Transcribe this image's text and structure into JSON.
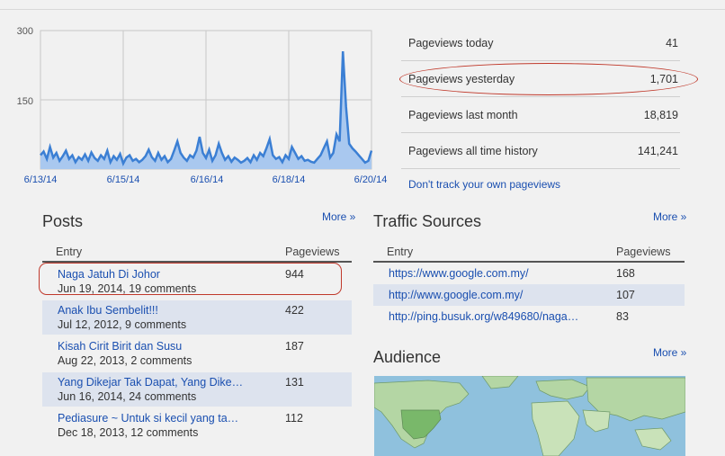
{
  "chart_data": {
    "type": "area",
    "y_ticks": [
      "300",
      "150"
    ],
    "x_labels": [
      "6/13/14",
      "6/15/14",
      "6/16/14",
      "6/18/14",
      "6/20/14"
    ],
    "ylim": [
      0,
      300
    ],
    "grid": true,
    "color": "#3b7fd4",
    "fill": "#a9c8ef",
    "values": [
      30,
      38,
      22,
      48,
      25,
      35,
      18,
      28,
      40,
      22,
      30,
      15,
      26,
      20,
      32,
      18,
      36,
      24,
      18,
      30,
      22,
      40,
      15,
      28,
      20,
      33,
      12,
      25,
      30,
      18,
      22,
      15,
      20,
      28,
      42,
      26,
      18,
      35,
      20,
      28,
      15,
      22,
      40,
      60,
      35,
      25,
      18,
      30,
      25,
      40,
      70,
      35,
      24,
      42,
      18,
      30,
      55,
      35,
      20,
      28,
      16,
      25,
      20,
      14,
      18,
      24,
      15,
      30,
      20,
      35,
      28,
      45,
      65,
      30,
      22,
      26,
      15,
      30,
      22,
      48,
      35,
      22,
      28,
      18,
      20,
      16,
      14,
      22,
      30,
      45,
      60,
      25,
      35,
      75,
      60,
      255,
      135,
      55,
      45,
      38,
      30,
      22,
      14,
      18,
      40
    ]
  },
  "stats": [
    {
      "label": "Pageviews today",
      "value": "41"
    },
    {
      "label": "Pageviews yesterday",
      "value": "1,701"
    },
    {
      "label": "Pageviews last month",
      "value": "18,819"
    },
    {
      "label": "Pageviews all time history",
      "value": "141,241"
    }
  ],
  "dont_track_link": "Don't track your own pageviews",
  "posts": {
    "title": "Posts",
    "more": "More »",
    "col_entry": "Entry",
    "col_pageviews": "Pageviews",
    "rows": [
      {
        "title": "Naga Jatuh Di Johor",
        "sub": "Jun 19, 2014, 19 comments",
        "views": "944"
      },
      {
        "title": "Anak Ibu Sembelit!!!",
        "sub": "Jul 12, 2012, 9 comments",
        "views": "422"
      },
      {
        "title": "Kisah Cirit Birit dan Susu",
        "sub": "Aug 22, 2013, 2 comments",
        "views": "187"
      },
      {
        "title": "Yang Dikejar Tak Dapat, Yang Dike…",
        "sub": "Jun 16, 2014, 24 comments",
        "views": "131"
      },
      {
        "title": "Pediasure ~ Untuk si kecil yang ta…",
        "sub": "Dec 18, 2013, 12 comments",
        "views": "112"
      }
    ]
  },
  "traffic": {
    "title": "Traffic Sources",
    "more": "More »",
    "col_entry": "Entry",
    "col_pageviews": "Pageviews",
    "rows": [
      {
        "url": "https://www.google.com.my/",
        "views": "168"
      },
      {
        "url": "http://www.google.com.my/",
        "views": "107"
      },
      {
        "url": "http://ping.busuk.org/w849680/naga…",
        "views": "83"
      }
    ]
  },
  "audience": {
    "title": "Audience",
    "more": "More »"
  }
}
